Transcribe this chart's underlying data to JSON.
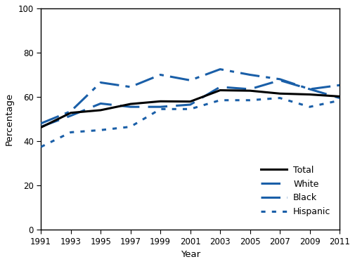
{
  "years": [
    1991,
    1993,
    1995,
    1997,
    1999,
    2001,
    2003,
    2005,
    2007,
    2009,
    2011
  ],
  "total": [
    46.2,
    52.8,
    54.0,
    56.8,
    58.0,
    57.9,
    63.0,
    62.8,
    61.5,
    61.1,
    60.2
  ],
  "white": [
    46.5,
    51.5,
    57.0,
    55.5,
    55.5,
    56.5,
    64.5,
    63.5,
    67.5,
    63.5,
    59.5
  ],
  "black": [
    48.0,
    53.5,
    66.5,
    64.5,
    70.0,
    67.5,
    72.5,
    70.0,
    68.0,
    63.5,
    65.3
  ],
  "hispanic": [
    37.4,
    44.0,
    45.0,
    46.5,
    54.5,
    54.5,
    58.5,
    58.5,
    59.5,
    55.5,
    58.4
  ],
  "total_color": "#000000",
  "race_color": "#1a5fa8",
  "ylim": [
    0,
    100
  ],
  "yticks": [
    0,
    20,
    40,
    60,
    80,
    100
  ],
  "ylabel": "Percentage",
  "xlabel": "Year",
  "legend_labels": [
    "Total",
    "White",
    "Black",
    "Hispanic"
  ]
}
